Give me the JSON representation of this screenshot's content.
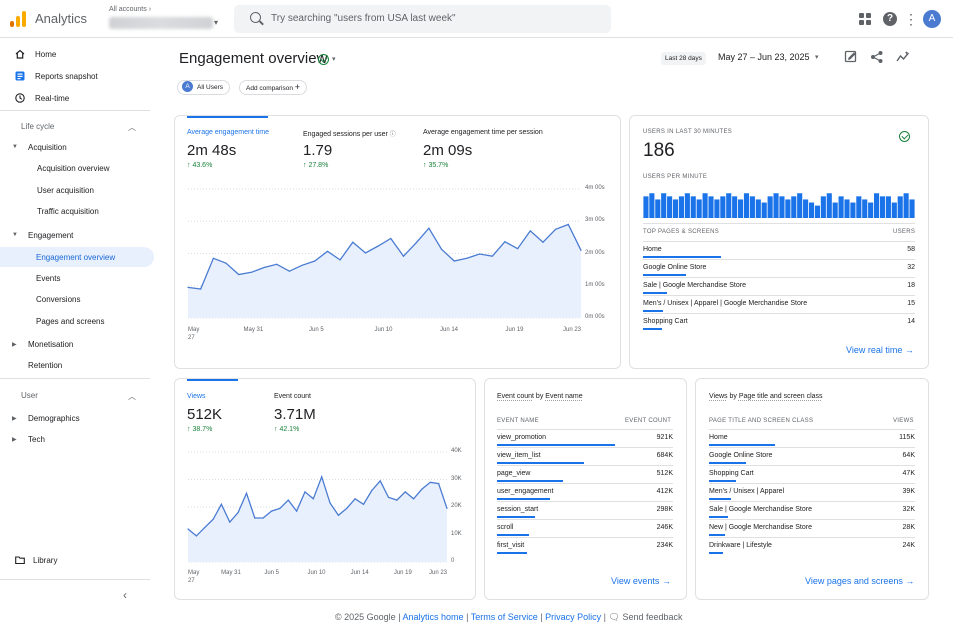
{
  "app": {
    "title": "Analytics",
    "account_label": "All accounts"
  },
  "search": {
    "placeholder": "Try searching \"users from USA last week\""
  },
  "user": {
    "initial": "A"
  },
  "sidebar": {
    "home": "Home",
    "reports_snapshot": "Reports snapshot",
    "realtime": "Real-time",
    "lifecycle": "Life cycle",
    "acquisition": "Acquisition",
    "acquisition_overview": "Acquisition overview",
    "user_acquisition": "User acquisition",
    "traffic_acquisition": "Traffic acquisition",
    "engagement": "Engagement",
    "engagement_overview": "Engagement overview",
    "events": "Events",
    "conversions": "Conversions",
    "pages_and_screens": "Pages and screens",
    "monetisation": "Monetisation",
    "retention": "Retention",
    "user_section": "User",
    "demographics": "Demographics",
    "tech": "Tech",
    "library": "Library"
  },
  "header": {
    "page_title": "Engagement overview",
    "date_chip": "Last 28 days",
    "date_range": "May 27 – Jun 23, 2025",
    "all_users_chip": "All Users",
    "add_comparison": "Add comparison"
  },
  "engagement_card": {
    "metrics": [
      {
        "label": "Average engagement time",
        "value": "2m 48s",
        "delta": "43.6%"
      },
      {
        "label": "Engaged sessions per user",
        "value": "1.79",
        "delta": "27.8%"
      },
      {
        "label": "Average engagement time per session",
        "value": "2m 09s",
        "delta": "35.7%"
      }
    ],
    "y_ticks": [
      "4m 00s",
      "3m 00s",
      "2m 00s",
      "1m 00s",
      "0m 00s"
    ],
    "x_ticks": [
      "May\n27",
      "May 31",
      "Jun 5",
      "Jun 10",
      "Jun 14",
      "Jun 19",
      "Jun 23"
    ]
  },
  "realtime": {
    "users_label": "USERS IN LAST 30 MINUTES",
    "users_value": "186",
    "per_minute_label": "USERS PER MINUTE",
    "per_minute": [
      7,
      8,
      6,
      8,
      7,
      6,
      7,
      8,
      7,
      6,
      8,
      7,
      6,
      7,
      8,
      7,
      6,
      8,
      7,
      6,
      5,
      7,
      8,
      7,
      6,
      7,
      8,
      6,
      5,
      4,
      7,
      8,
      5,
      7,
      6,
      5,
      7,
      6,
      5,
      8,
      7,
      7,
      5,
      7,
      8,
      6
    ],
    "pages_head": "TOP PAGES & SCREENS",
    "users_head": "USERS",
    "rows": [
      {
        "name": "Home",
        "value": "58",
        "share": 1.0
      },
      {
        "name": "Google Online Store",
        "value": "32",
        "share": 0.55
      },
      {
        "name": "Sale | Google Merchandise Store",
        "value": "18",
        "share": 0.31
      },
      {
        "name": "Men's / Unisex | Apparel | Google Merchandise Store",
        "value": "15",
        "share": 0.26
      },
      {
        "name": "Shopping Cart",
        "value": "14",
        "share": 0.24
      }
    ],
    "view_link": "View real time"
  },
  "views_card": {
    "metrics": [
      {
        "label": "Views",
        "value": "512K",
        "delta": "38.7%"
      },
      {
        "label": "Event count",
        "value": "3.71M",
        "delta": "42.1%"
      }
    ],
    "y_ticks": [
      "40K",
      "30K",
      "20K",
      "10K",
      "0"
    ],
    "x_ticks": [
      "May\n27",
      "May 31",
      "Jun 5",
      "Jun 10",
      "Jun 14",
      "Jun 19",
      "Jun 23"
    ]
  },
  "events_card": {
    "title_prefix": "Event count",
    "title_by": "by",
    "title_dim": "Event name",
    "head_name": "EVENT NAME",
    "head_value": "EVENT COUNT",
    "rows": [
      {
        "name": "view_promotion",
        "value": "921K",
        "share": 1.0
      },
      {
        "name": "view_item_list",
        "value": "684K",
        "share": 0.74
      },
      {
        "name": "page_view",
        "value": "512K",
        "share": 0.56
      },
      {
        "name": "user_engagement",
        "value": "412K",
        "share": 0.45
      },
      {
        "name": "session_start",
        "value": "298K",
        "share": 0.32
      },
      {
        "name": "scroll",
        "value": "246K",
        "share": 0.27
      },
      {
        "name": "first_visit",
        "value": "234K",
        "share": 0.25
      }
    ],
    "view_link": "View events"
  },
  "pages_card": {
    "title_prefix": "Views",
    "title_by": "by",
    "title_dim": "Page title and screen class",
    "head_name": "PAGE TITLE AND SCREEN CLASS",
    "head_value": "VIEWS",
    "rows": [
      {
        "name": "Home",
        "value": "115K",
        "share": 1.0
      },
      {
        "name": "Google Online Store",
        "value": "64K",
        "share": 0.56
      },
      {
        "name": "Shopping Cart",
        "value": "47K",
        "share": 0.41
      },
      {
        "name": "Men's / Unisex | Apparel",
        "value": "39K",
        "share": 0.34
      },
      {
        "name": "Sale | Google Merchandise Store",
        "value": "32K",
        "share": 0.28
      },
      {
        "name": "New | Google Merchandise Store",
        "value": "28K",
        "share": 0.24
      },
      {
        "name": "Drinkware | Lifestyle",
        "value": "24K",
        "share": 0.21
      }
    ],
    "view_link": "View pages and screens"
  },
  "footer": {
    "copyright": "© 2025 Google",
    "analytics_home": "Analytics home",
    "terms": "Terms of Service",
    "privacy": "Privacy Policy",
    "feedback": "Send feedback"
  },
  "chart_data": [
    {
      "type": "area",
      "xlabel": "",
      "ylabel": "",
      "ylim": [
        0,
        240
      ],
      "x_tick_labels": [
        "May 27",
        "May 31",
        "Jun 5",
        "Jun 10",
        "Jun 14",
        "Jun 19",
        "Jun 23"
      ],
      "series": [
        {
          "values": [
            57,
            54,
            111,
            102,
            81,
            85,
            94,
            100,
            87,
            98,
            106,
            124,
            108,
            141,
            121,
            134,
            148,
            115,
            140,
            167,
            128,
            106,
            111,
            119,
            115,
            142,
            129,
            162,
            141,
            165,
            174,
            126
          ]
        }
      ]
    },
    {
      "type": "area",
      "xlabel": "",
      "ylabel": "",
      "ylim": [
        0,
        40000
      ],
      "x_tick_labels": [
        "May 27",
        "May 31",
        "Jun 5",
        "Jun 10",
        "Jun 14",
        "Jun 19",
        "Jun 23"
      ],
      "series": [
        {
          "values": [
            12000,
            9500,
            12500,
            15500,
            21000,
            14500,
            18000,
            25000,
            16000,
            16000,
            18500,
            19500,
            22500,
            18500,
            25500,
            23000,
            31000,
            21500,
            17000,
            19500,
            23000,
            21000,
            26000,
            29500,
            23500,
            22500,
            25500,
            23000,
            26500,
            29000,
            28500,
            19500
          ]
        }
      ]
    }
  ]
}
